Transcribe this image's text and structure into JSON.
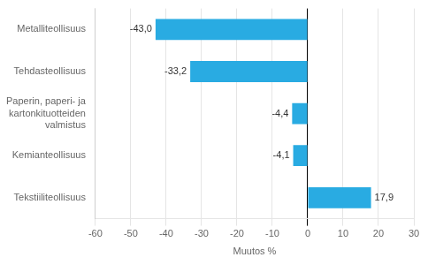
{
  "chart_data": {
    "type": "bar",
    "orientation": "horizontal",
    "categories": [
      "Metalliteollisuus",
      "Tehdasteollisuus",
      "Paperin, paperi- ja kartonkituotteiden valmistus",
      "Kemianteollisuus",
      "Tekstiiliteollisuus"
    ],
    "values": [
      -43.0,
      -33.2,
      -4.4,
      -4.1,
      17.9
    ],
    "value_labels": [
      "-43,0",
      "-33,2",
      "-4,4",
      "-4,1",
      "17,9"
    ],
    "data_labels": true,
    "color": "#29abe2",
    "xlabel": "Muutos %",
    "xlim": [
      -60,
      30
    ],
    "xticks": [
      -60,
      -50,
      -40,
      -30,
      -20,
      -10,
      0,
      10,
      20,
      30
    ],
    "grid": true
  }
}
